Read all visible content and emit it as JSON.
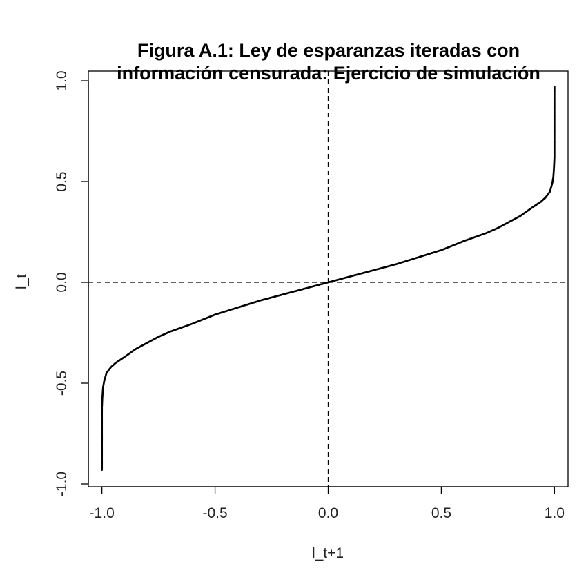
{
  "chart_data": {
    "type": "scatter",
    "title_lines": [
      "Figura A.1: Ley de esparanzas iteradas con",
      "información censurada: Ejercicio de simulación"
    ],
    "xlabel": "l_t+1",
    "ylabel": "l_t",
    "xlim": [
      -1.06,
      1.06
    ],
    "ylim": [
      -1.0,
      1.0
    ],
    "x_ticks": [
      -1.0,
      -0.5,
      0.0,
      0.5,
      1.0
    ],
    "x_tick_labels": [
      "-1.0",
      "-0.5",
      "0.0",
      "0.5",
      "1.0"
    ],
    "y_ticks": [
      -1.0,
      -0.5,
      0.0,
      0.5,
      1.0
    ],
    "y_tick_labels": [
      "-1.0",
      "-0.5",
      "0.0",
      "0.5",
      "1.0"
    ],
    "reference_lines": [
      {
        "orientation": "vertical",
        "value": 0.0,
        "style": "dashed"
      },
      {
        "orientation": "horizontal",
        "value": 0.0,
        "style": "dashed"
      }
    ],
    "grid": false,
    "marker_color": "#000000",
    "series": [
      {
        "values": [
          [
            -1.0,
            -0.93
          ],
          [
            -1.0,
            -0.85
          ],
          [
            -1.0,
            -0.78
          ],
          [
            -1.0,
            -0.7
          ],
          [
            -1.0,
            -0.62
          ],
          [
            -0.998,
            -0.57
          ],
          [
            -0.995,
            -0.52
          ],
          [
            -0.99,
            -0.49
          ],
          [
            -0.98,
            -0.45
          ],
          [
            -0.96,
            -0.42
          ],
          [
            -0.94,
            -0.4
          ],
          [
            -0.9,
            -0.37
          ],
          [
            -0.85,
            -0.33
          ],
          [
            -0.8,
            -0.3
          ],
          [
            -0.75,
            -0.27
          ],
          [
            -0.7,
            -0.245
          ],
          [
            -0.6,
            -0.205
          ],
          [
            -0.5,
            -0.16
          ],
          [
            -0.4,
            -0.125
          ],
          [
            -0.3,
            -0.09
          ],
          [
            -0.2,
            -0.06
          ],
          [
            -0.1,
            -0.03
          ],
          [
            0.0,
            0.0
          ],
          [
            0.1,
            0.03
          ],
          [
            0.2,
            0.06
          ],
          [
            0.3,
            0.09
          ],
          [
            0.4,
            0.125
          ],
          [
            0.5,
            0.16
          ],
          [
            0.6,
            0.205
          ],
          [
            0.7,
            0.245
          ],
          [
            0.75,
            0.27
          ],
          [
            0.8,
            0.3
          ],
          [
            0.85,
            0.33
          ],
          [
            0.9,
            0.37
          ],
          [
            0.94,
            0.4
          ],
          [
            0.96,
            0.42
          ],
          [
            0.98,
            0.45
          ],
          [
            0.99,
            0.49
          ],
          [
            0.995,
            0.52
          ],
          [
            0.998,
            0.57
          ],
          [
            1.0,
            0.62
          ],
          [
            1.0,
            0.7
          ],
          [
            1.0,
            0.78
          ],
          [
            1.0,
            0.85
          ],
          [
            1.0,
            0.93
          ],
          [
            1.0,
            0.97
          ]
        ]
      }
    ]
  }
}
